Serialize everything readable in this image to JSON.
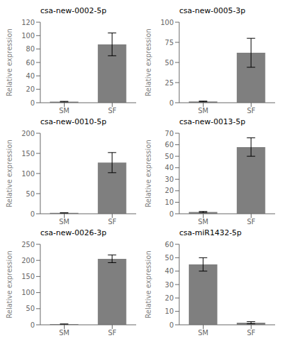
{
  "chart_data": [
    {
      "type": "bar",
      "title": "csa-new-0002-5p",
      "categories": [
        "SM",
        "SF"
      ],
      "values": [
        1.5,
        87
      ],
      "errors": [
        0.5,
        17
      ],
      "color": "#7f7f7f",
      "y_label": "Relative expression",
      "ylim": [
        0,
        120
      ],
      "yticks": [
        0,
        20,
        40,
        60,
        80,
        100,
        120
      ],
      "grid": false
    },
    {
      "type": "bar",
      "title": "csa-new-0005-3p",
      "categories": [
        "SM",
        "SF"
      ],
      "values": [
        1.5,
        62
      ],
      "errors": [
        0.5,
        18
      ],
      "color": "#7f7f7f",
      "y_label": "Relative expression",
      "ylim": [
        0,
        100
      ],
      "yticks": [
        0,
        25,
        50,
        75,
        100
      ],
      "grid": false
    },
    {
      "type": "bar",
      "title": "csa-new-0010-5p",
      "categories": [
        "SM",
        "SF"
      ],
      "values": [
        2,
        127
      ],
      "errors": [
        0.5,
        25
      ],
      "color": "#7f7f7f",
      "y_label": "Relative expression",
      "ylim": [
        0,
        200
      ],
      "yticks": [
        0,
        50,
        100,
        150,
        200
      ],
      "grid": false
    },
    {
      "type": "bar",
      "title": "csa-new-0013-5p",
      "categories": [
        "SM",
        "SF"
      ],
      "values": [
        1.5,
        58
      ],
      "errors": [
        0.5,
        8
      ],
      "color": "#7f7f7f",
      "y_label": "Relative expression",
      "ylim": [
        0,
        70
      ],
      "yticks": [
        0,
        10,
        20,
        30,
        40,
        50,
        60,
        70
      ],
      "grid": false
    },
    {
      "type": "bar",
      "title": "csa-new-0026-3p",
      "categories": [
        "SM",
        "SF"
      ],
      "values": [
        2,
        205
      ],
      "errors": [
        0.5,
        12
      ],
      "color": "#7f7f7f",
      "y_label": "Relative expression",
      "ylim": [
        0,
        250
      ],
      "yticks": [
        0,
        50,
        100,
        150,
        200,
        250
      ],
      "grid": false
    },
    {
      "type": "bar",
      "title": "csa-miR1432-5p",
      "categories": [
        "SM",
        "SF"
      ],
      "values": [
        45,
        1.5
      ],
      "errors": [
        5,
        0.8
      ],
      "color": "#7f7f7f",
      "y_label": "Relative expression",
      "ylim": [
        0,
        60
      ],
      "yticks": [
        0,
        10,
        20,
        30,
        40,
        50,
        60
      ],
      "grid": false
    }
  ]
}
